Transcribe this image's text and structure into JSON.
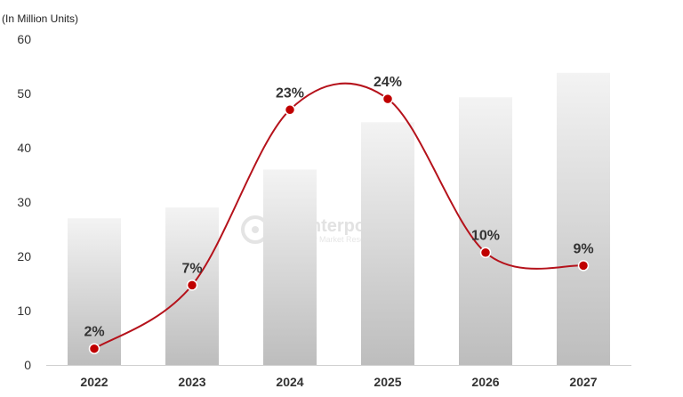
{
  "chart_data": {
    "type": "bar",
    "ylabel": "(In Million Units)",
    "ylim": [
      0,
      60
    ],
    "yticks": [
      0,
      10,
      20,
      30,
      40,
      50,
      60
    ],
    "categories": [
      "2022",
      "2023",
      "2024",
      "2025",
      "2026",
      "2027"
    ],
    "series": [
      {
        "type": "bar",
        "values": [
          27,
          29,
          36,
          44.7,
          49.3,
          53.8
        ]
      },
      {
        "type": "line",
        "values": [
          3,
          14.7,
          47,
          49,
          20.7,
          18.3
        ],
        "labels": [
          "2%",
          "7%",
          "23%",
          "24%",
          "10%",
          "9%"
        ]
      }
    ],
    "grid": false,
    "legend": "none",
    "colors": {
      "bar_top": "#f3f3f3",
      "bar_bottom": "#bdbdbd",
      "line": "#b5121b",
      "marker": "#c00000"
    }
  },
  "watermark": {
    "title": "Counterpoint",
    "subtitle": "Technology Market Research"
  }
}
